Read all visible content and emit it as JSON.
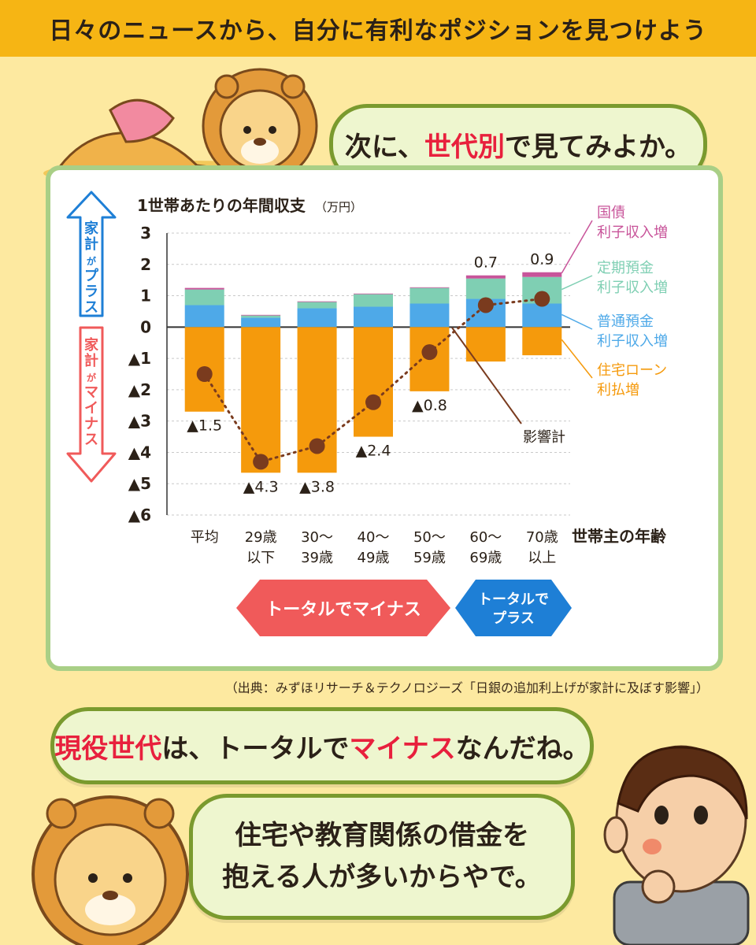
{
  "header": {
    "title": "日々のニュースから、自分に有利なポジションを見つけよう"
  },
  "bubble1": {
    "before": "次に、",
    "highlight": "世代別",
    "after": "で見てみよか。"
  },
  "bubble2": {
    "hl1": "現役世代",
    "mid": "は、トータルで",
    "hl2": "マイナス",
    "end": "なんだね。"
  },
  "bubble3": {
    "line1": "住宅や教育関係の借金を",
    "line2": "抱える人が多いからやで。"
  },
  "source": "（出典：みずほリサーチ＆テクノロジーズ「日銀の追加利上げが家計に及ぼす影響」）",
  "side_labels": {
    "plus": {
      "chars": [
        "家",
        "計",
        "が",
        "プ",
        "ラ",
        "ス"
      ]
    },
    "minus": {
      "chars": [
        "家",
        "計",
        "が",
        "マ",
        "イ",
        "ナ",
        "ス"
      ]
    }
  },
  "bottom_arrows": {
    "minus": "トータルでマイナス",
    "plus_line1": "トータルで",
    "plus_line2": "プラス"
  },
  "colors": {
    "bond": "#c8549a",
    "time_deposit": "#7fcfb3",
    "ordinary_deposit": "#4ea9e8",
    "loan": "#f59a0c",
    "total": "#7a3b1e",
    "plus_arrow": "#1e7fd6",
    "minus_arrow": "#f05a5a"
  },
  "chart_data": {
    "type": "bar",
    "stacked": true,
    "title": "1世帯あたりの年間収支",
    "unit": "（万円）",
    "xlabel": "世帯主の年齢",
    "categories": [
      "平均",
      "29歳\n以下",
      "30～\n39歳",
      "40～\n49歳",
      "50～\n59歳",
      "60～\n69歳",
      "70歳\n以上"
    ],
    "ylim": [
      -6,
      3
    ],
    "yticks": [
      3,
      2,
      1,
      0,
      -1,
      -2,
      -3,
      -4,
      -5,
      -6
    ],
    "ytick_labels": [
      "3",
      "2",
      "1",
      "0",
      "▲1",
      "▲2",
      "▲3",
      "▲4",
      "▲5",
      "▲6"
    ],
    "series": [
      {
        "name": "普通預金\n利子収入増",
        "key": "ordinary_deposit",
        "values": [
          0.7,
          0.3,
          0.6,
          0.65,
          0.75,
          0.9,
          0.75
        ]
      },
      {
        "name": "定期預金\n利子収入増",
        "key": "time_deposit",
        "values": [
          0.5,
          0.07,
          0.2,
          0.4,
          0.5,
          0.65,
          0.85
        ]
      },
      {
        "name": "国債\n利子収入増",
        "key": "bond",
        "values": [
          0.05,
          0.02,
          0.02,
          0.02,
          0.02,
          0.1,
          0.15
        ]
      },
      {
        "name": "住宅ローン\n利払増",
        "key": "loan",
        "values": [
          -2.7,
          -4.65,
          -4.65,
          -3.5,
          -2.05,
          -1.1,
          -0.9
        ]
      }
    ],
    "total": {
      "name": "影響計",
      "values": [
        -1.5,
        -4.3,
        -3.8,
        -2.4,
        -0.8,
        0.7,
        0.9
      ],
      "labels": [
        "▲1.5",
        "▲4.3",
        "▲3.8",
        "▲2.4",
        "▲0.8",
        "0.7",
        "0.9"
      ]
    },
    "legend": "right"
  }
}
